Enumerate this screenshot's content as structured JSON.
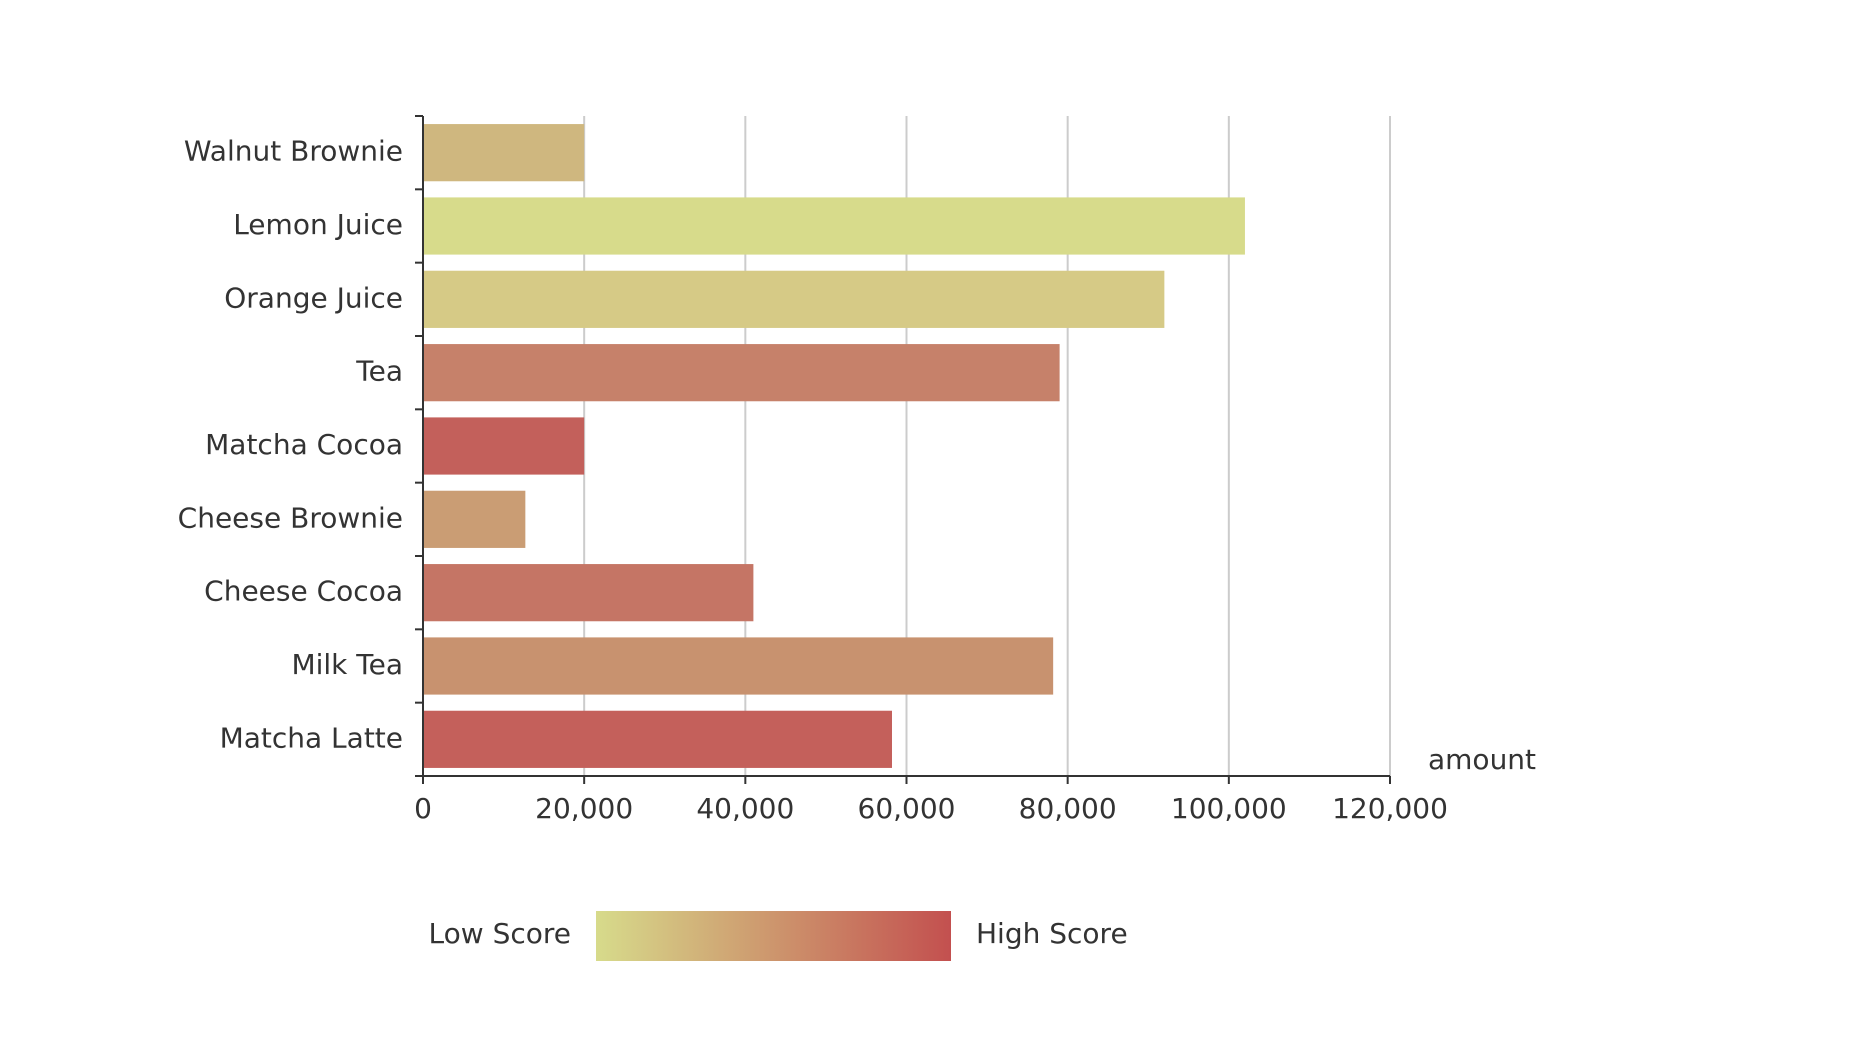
{
  "chart_data": {
    "type": "bar",
    "orientation": "horizontal",
    "categories": [
      "Walnut Brownie",
      "Lemon Juice",
      "Orange Juice",
      "Tea",
      "Matcha Cocoa",
      "Cheese Brownie",
      "Cheese Cocoa",
      "Milk Tea",
      "Matcha Latte"
    ],
    "values": [
      20000,
      102000,
      92000,
      79000,
      20000,
      12700,
      41000,
      78200,
      58200
    ],
    "bar_colors": [
      "#cfb77f",
      "#d7db8b",
      "#d6ca86",
      "#c6816a",
      "#c3605b",
      "#ca9d74",
      "#c57565",
      "#c8926f",
      "#c4605b"
    ],
    "xlabel": "amount",
    "ylabel": "",
    "xlim": [
      0,
      120000
    ],
    "x_ticks": [
      0,
      20000,
      40000,
      60000,
      80000,
      100000,
      120000
    ],
    "x_tick_labels": [
      "0",
      "20,000",
      "40,000",
      "60,000",
      "80,000",
      "100,000",
      "120,000"
    ],
    "grid": "vertical",
    "legend": {
      "type": "continuous-color",
      "placement": "bottom",
      "low_label": "Low Score",
      "high_label": "High Score",
      "low_color": "#d7db8b",
      "high_color": "#c3504f"
    }
  }
}
